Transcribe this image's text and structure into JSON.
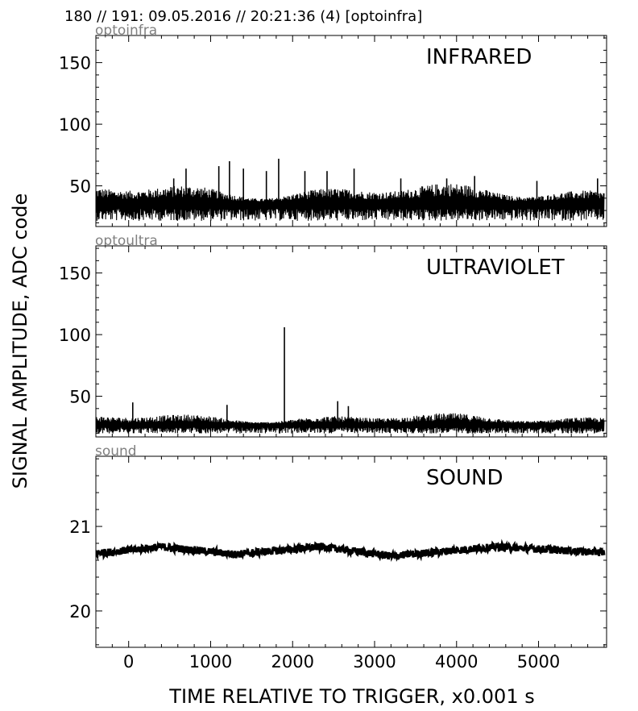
{
  "header": {
    "text": "180 // 191:   09.05.2016 // 20:21:36 (4)  [optoinfra]"
  },
  "chart_data": {
    "type": "line",
    "xlabel": "TIME RELATIVE TO TRIGGER,   x0.001 s",
    "ylabel": "SIGNAL AMPLITUDE,  ADC code",
    "xlim": [
      -400,
      5830
    ],
    "xticks": [
      0,
      1000,
      2000,
      3000,
      4000,
      5000
    ],
    "xtick_labels": [
      "0",
      "1000",
      "2000",
      "3000",
      "4000",
      "5000"
    ],
    "grid": false,
    "panels": [
      {
        "channel": "optoinfra",
        "title": "INFRARED",
        "ylim": [
          17,
          172
        ],
        "yticks": [
          50,
          100,
          150
        ],
        "ytick_labels": [
          "50",
          "100",
          "150"
        ],
        "series": {
          "x_range": [
            -400,
            5800
          ],
          "baseline": 36,
          "noise_low": 24,
          "noise_high": 50,
          "peaks": [
            {
              "x": 550,
              "y": 56
            },
            {
              "x": 700,
              "y": 64
            },
            {
              "x": 1100,
              "y": 66
            },
            {
              "x": 1230,
              "y": 70
            },
            {
              "x": 1400,
              "y": 64
            },
            {
              "x": 1680,
              "y": 62
            },
            {
              "x": 1830,
              "y": 72
            },
            {
              "x": 2150,
              "y": 62
            },
            {
              "x": 2420,
              "y": 62
            },
            {
              "x": 2750,
              "y": 64
            },
            {
              "x": 3320,
              "y": 56
            },
            {
              "x": 3880,
              "y": 56
            },
            {
              "x": 4220,
              "y": 58
            },
            {
              "x": 4980,
              "y": 54
            },
            {
              "x": 5720,
              "y": 56
            }
          ]
        }
      },
      {
        "channel": "optoultra",
        "title": "ULTRAVIOLET",
        "ylim": [
          17,
          172
        ],
        "yticks": [
          50,
          100,
          150
        ],
        "ytick_labels": [
          "50",
          "100",
          "150"
        ],
        "series": {
          "x_range": [
            -400,
            5800
          ],
          "baseline": 27,
          "noise_low": 21,
          "noise_high": 35,
          "peaks": [
            {
              "x": 50,
              "y": 45
            },
            {
              "x": 1900,
              "y": 106
            },
            {
              "x": 2550,
              "y": 46
            },
            {
              "x": 2680,
              "y": 42
            },
            {
              "x": 1200,
              "y": 43
            }
          ]
        }
      },
      {
        "channel": "sound",
        "title": "SOUND",
        "ylim": [
          19.57,
          21.83
        ],
        "yticks": [
          20,
          21
        ],
        "ytick_labels": [
          "20",
          "21"
        ],
        "series": {
          "x_range": [
            -400,
            5800
          ],
          "baseline": 20.68,
          "noise_low": 20.63,
          "noise_high": 20.74,
          "drift": [
            {
              "x": -400,
              "y": 20.68
            },
            {
              "x": 400,
              "y": 20.76
            },
            {
              "x": 1300,
              "y": 20.67
            },
            {
              "x": 2350,
              "y": 20.76
            },
            {
              "x": 3200,
              "y": 20.65
            },
            {
              "x": 4500,
              "y": 20.76
            },
            {
              "x": 5800,
              "y": 20.69
            }
          ]
        }
      }
    ]
  }
}
